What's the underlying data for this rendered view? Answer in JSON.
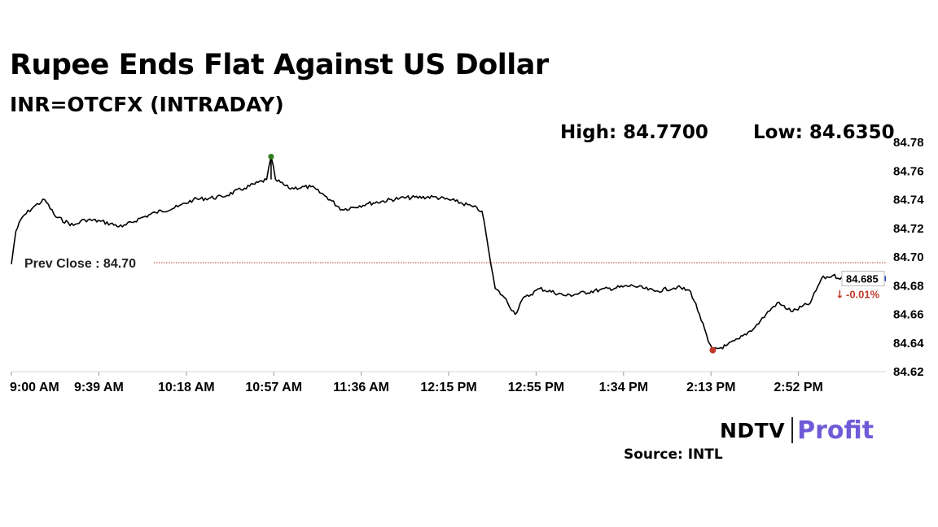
{
  "header": {
    "title": "Rupee Ends Flat Against US Dollar",
    "subtitle": "INR=OTCFX (INTRADAY)",
    "high_label": "High: 84.7700",
    "low_label": "Low: 84.6350"
  },
  "chart_data": {
    "type": "line",
    "x_tick_labels": [
      "9:00 AM",
      "9:39 AM",
      "10:18 AM",
      "10:57 AM",
      "11:36 AM",
      "12:15 PM",
      "12:55 PM",
      "1:34 PM",
      "2:13 PM",
      "2:52 PM"
    ],
    "y_ticks": [
      "84.78",
      "84.76",
      "84.74",
      "84.72",
      "84.70",
      "84.68",
      "84.66",
      "84.64",
      "84.62"
    ],
    "ylim": [
      84.62,
      84.78
    ],
    "grid": false,
    "reference_line": {
      "label": "Prev Close : 84.70",
      "value": 84.696,
      "color": "#b03a2e"
    },
    "series": [
      {
        "line_color": "#000000",
        "x": [
          "9:00 AM",
          "9:02 AM",
          "9:05 AM",
          "9:10 AM",
          "9:15 AM",
          "9:20 AM",
          "9:28 AM",
          "9:33 AM",
          "9:40 AM",
          "9:50 AM",
          "9:58 AM",
          "10:05 AM",
          "10:15 AM",
          "10:22 AM",
          "10:35 AM",
          "10:45 AM",
          "10:55 AM",
          "10:57 AM",
          "10:59 AM",
          "11:05 AM",
          "11:15 AM",
          "11:22 AM",
          "11:29 AM",
          "11:40 AM",
          "11:55 AM",
          "12:10 PM",
          "12:20 PM",
          "12:28 PM",
          "12:32 PM",
          "12:34 PM",
          "12:36 PM",
          "12:38 PM",
          "12:42 PM",
          "12:47 PM",
          "12:50 PM",
          "12:58 PM",
          "1:10 PM",
          "1:25 PM",
          "1:40 PM",
          "1:50 PM",
          "2:00 PM",
          "2:06 PM",
          "2:10 PM",
          "2:14 PM",
          "2:16 PM",
          "2:22 PM",
          "2:28 PM",
          "2:35 PM",
          "2:40 PM",
          "2:45 PM",
          "2:52 PM",
          "3:00 PM",
          "3:05 PM",
          "3:10 PM",
          "3:15 PM"
        ],
        "y": [
          84.695,
          84.718,
          84.728,
          84.735,
          84.74,
          84.728,
          84.722,
          84.726,
          84.725,
          84.721,
          84.727,
          84.731,
          84.735,
          84.74,
          84.742,
          84.748,
          84.754,
          84.77,
          84.754,
          84.748,
          84.749,
          84.742,
          84.733,
          84.737,
          84.741,
          84.742,
          84.739,
          84.735,
          84.732,
          84.715,
          84.695,
          84.678,
          84.672,
          84.66,
          84.67,
          84.678,
          84.673,
          84.677,
          84.68,
          84.676,
          84.679,
          84.676,
          84.66,
          84.641,
          84.635,
          84.638,
          84.643,
          84.651,
          84.66,
          84.668,
          84.662,
          84.668,
          84.685,
          84.687,
          84.685
        ]
      }
    ],
    "high_marker": {
      "time": "10:57 AM",
      "value": 84.77,
      "color": "#2e7d1e"
    },
    "low_marker": {
      "time": "2:16 PM",
      "value": 84.635,
      "color": "#c0392b"
    },
    "last_marker_color": "#1f3fbf",
    "last_label": {
      "value": "84.685",
      "change": "-0.01%",
      "arrow": "↓",
      "change_color": "#c0392b"
    }
  },
  "footer": {
    "brand_left": "NDTV",
    "brand_right": "Profit",
    "source": "Source: INTL"
  }
}
